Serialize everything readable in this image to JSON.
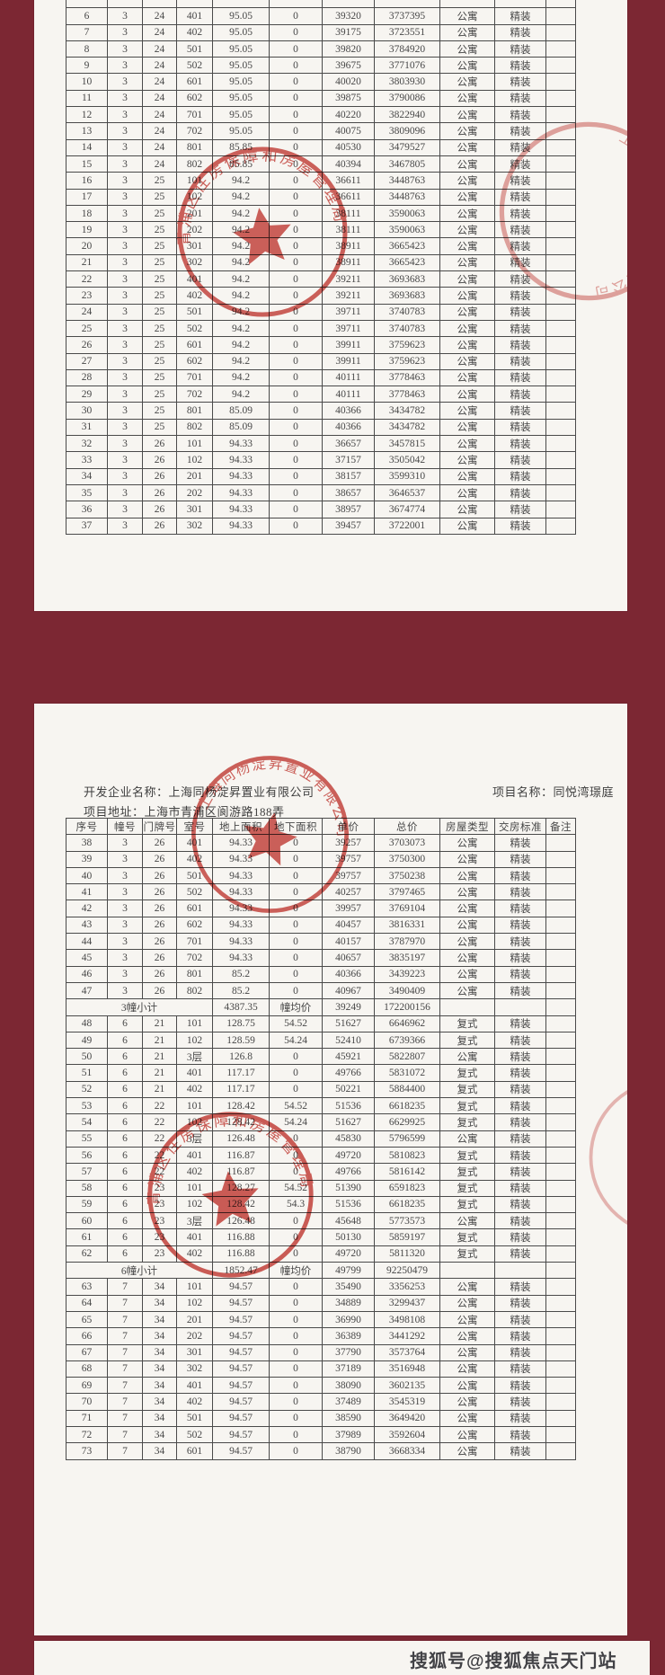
{
  "watermark": "搜狐号@搜狐焦点天门站",
  "colors": {
    "background_maroon": "#7c2733",
    "page_white": "#f7f5f1",
    "stamp_red": "#c63c35",
    "table_ink": "#474747"
  },
  "stamps": {
    "bureau_seal_text": "青浦区住房保障和房屋管理局",
    "company_seal_text": "上海同杨淀昇置业有限公司",
    "star_icon": "five-point-star"
  },
  "page2_header": {
    "developer": "开发企业名称：上海同杨淀昇置业有限公司",
    "project_name": "项目名称：同悦湾璟庭",
    "address": "项目地址：上海市青浦区阆游路188弄"
  },
  "columns": [
    "序号",
    "幢号",
    "门牌号",
    "室号",
    "地上面积",
    "地下面积",
    "单价",
    "总价",
    "房屋类型",
    "交房标准",
    "备注"
  ],
  "page1_rows": [
    {
      "cells": [
        "",
        "",
        "",
        "",
        "",
        "",
        "",
        "",
        "",
        "",
        ""
      ]
    },
    {
      "cells": [
        "6",
        "3",
        "24",
        "401",
        "95.05",
        "0",
        "39320",
        "3737395",
        "公寓",
        "精装",
        ""
      ]
    },
    {
      "cells": [
        "7",
        "3",
        "24",
        "402",
        "95.05",
        "0",
        "39175",
        "3723551",
        "公寓",
        "精装",
        ""
      ]
    },
    {
      "cells": [
        "8",
        "3",
        "24",
        "501",
        "95.05",
        "0",
        "39820",
        "3784920",
        "公寓",
        "精装",
        ""
      ]
    },
    {
      "cells": [
        "9",
        "3",
        "24",
        "502",
        "95.05",
        "0",
        "39675",
        "3771076",
        "公寓",
        "精装",
        ""
      ]
    },
    {
      "cells": [
        "10",
        "3",
        "24",
        "601",
        "95.05",
        "0",
        "40020",
        "3803930",
        "公寓",
        "精装",
        ""
      ]
    },
    {
      "cells": [
        "11",
        "3",
        "24",
        "602",
        "95.05",
        "0",
        "39875",
        "3790086",
        "公寓",
        "精装",
        ""
      ]
    },
    {
      "cells": [
        "12",
        "3",
        "24",
        "701",
        "95.05",
        "0",
        "40220",
        "3822940",
        "公寓",
        "精装",
        ""
      ]
    },
    {
      "cells": [
        "13",
        "3",
        "24",
        "702",
        "95.05",
        "0",
        "40075",
        "3809096",
        "公寓",
        "精装",
        ""
      ]
    },
    {
      "cells": [
        "14",
        "3",
        "24",
        "801",
        "85.85",
        "0",
        "40530",
        "3479527",
        "公寓",
        "精装",
        ""
      ]
    },
    {
      "cells": [
        "15",
        "3",
        "24",
        "802",
        "85.85",
        "0",
        "40394",
        "3467805",
        "公寓",
        "精装",
        ""
      ]
    },
    {
      "cells": [
        "16",
        "3",
        "25",
        "101",
        "94.2",
        "0",
        "36611",
        "3448763",
        "公寓",
        "精装",
        ""
      ]
    },
    {
      "cells": [
        "17",
        "3",
        "25",
        "102",
        "94.2",
        "0",
        "36611",
        "3448763",
        "公寓",
        "精装",
        ""
      ]
    },
    {
      "cells": [
        "18",
        "3",
        "25",
        "201",
        "94.2",
        "0",
        "38111",
        "3590063",
        "公寓",
        "精装",
        ""
      ]
    },
    {
      "cells": [
        "19",
        "3",
        "25",
        "202",
        "94.2",
        "0",
        "38111",
        "3590063",
        "公寓",
        "精装",
        ""
      ]
    },
    {
      "cells": [
        "20",
        "3",
        "25",
        "301",
        "94.2",
        "0",
        "38911",
        "3665423",
        "公寓",
        "精装",
        ""
      ]
    },
    {
      "cells": [
        "21",
        "3",
        "25",
        "302",
        "94.2",
        "0",
        "38911",
        "3665423",
        "公寓",
        "精装",
        ""
      ]
    },
    {
      "cells": [
        "22",
        "3",
        "25",
        "401",
        "94.2",
        "0",
        "39211",
        "3693683",
        "公寓",
        "精装",
        ""
      ]
    },
    {
      "cells": [
        "23",
        "3",
        "25",
        "402",
        "94.2",
        "0",
        "39211",
        "3693683",
        "公寓",
        "精装",
        ""
      ]
    },
    {
      "cells": [
        "24",
        "3",
        "25",
        "501",
        "94.2",
        "0",
        "39711",
        "3740783",
        "公寓",
        "精装",
        ""
      ]
    },
    {
      "cells": [
        "25",
        "3",
        "25",
        "502",
        "94.2",
        "0",
        "39711",
        "3740783",
        "公寓",
        "精装",
        ""
      ]
    },
    {
      "cells": [
        "26",
        "3",
        "25",
        "601",
        "94.2",
        "0",
        "39911",
        "3759623",
        "公寓",
        "精装",
        ""
      ]
    },
    {
      "cells": [
        "27",
        "3",
        "25",
        "602",
        "94.2",
        "0",
        "39911",
        "3759623",
        "公寓",
        "精装",
        ""
      ]
    },
    {
      "cells": [
        "28",
        "3",
        "25",
        "701",
        "94.2",
        "0",
        "40111",
        "3778463",
        "公寓",
        "精装",
        ""
      ]
    },
    {
      "cells": [
        "29",
        "3",
        "25",
        "702",
        "94.2",
        "0",
        "40111",
        "3778463",
        "公寓",
        "精装",
        ""
      ]
    },
    {
      "cells": [
        "30",
        "3",
        "25",
        "801",
        "85.09",
        "0",
        "40366",
        "3434782",
        "公寓",
        "精装",
        ""
      ]
    },
    {
      "cells": [
        "31",
        "3",
        "25",
        "802",
        "85.09",
        "0",
        "40366",
        "3434782",
        "公寓",
        "精装",
        ""
      ]
    },
    {
      "cells": [
        "32",
        "3",
        "26",
        "101",
        "94.33",
        "0",
        "36657",
        "3457815",
        "公寓",
        "精装",
        ""
      ]
    },
    {
      "cells": [
        "33",
        "3",
        "26",
        "102",
        "94.33",
        "0",
        "37157",
        "3505042",
        "公寓",
        "精装",
        ""
      ]
    },
    {
      "cells": [
        "34",
        "3",
        "26",
        "201",
        "94.33",
        "0",
        "38157",
        "3599310",
        "公寓",
        "精装",
        ""
      ]
    },
    {
      "cells": [
        "35",
        "3",
        "26",
        "202",
        "94.33",
        "0",
        "38657",
        "3646537",
        "公寓",
        "精装",
        ""
      ]
    },
    {
      "cells": [
        "36",
        "3",
        "26",
        "301",
        "94.33",
        "0",
        "38957",
        "3674774",
        "公寓",
        "精装",
        ""
      ]
    },
    {
      "cells": [
        "37",
        "3",
        "26",
        "302",
        "94.33",
        "0",
        "39457",
        "3722001",
        "公寓",
        "精装",
        ""
      ]
    }
  ],
  "page2_rows": [
    {
      "cells": [
        "38",
        "3",
        "26",
        "401",
        "94.33",
        "0",
        "39257",
        "3703073",
        "公寓",
        "精装",
        ""
      ]
    },
    {
      "cells": [
        "39",
        "3",
        "26",
        "402",
        "94.33",
        "0",
        "39757",
        "3750300",
        "公寓",
        "精装",
        ""
      ]
    },
    {
      "cells": [
        "40",
        "3",
        "26",
        "501",
        "94.33",
        "0",
        "39757",
        "3750238",
        "公寓",
        "精装",
        ""
      ]
    },
    {
      "cells": [
        "41",
        "3",
        "26",
        "502",
        "94.33",
        "0",
        "40257",
        "3797465",
        "公寓",
        "精装",
        ""
      ]
    },
    {
      "cells": [
        "42",
        "3",
        "26",
        "601",
        "94.33",
        "0",
        "39957",
        "3769104",
        "公寓",
        "精装",
        ""
      ]
    },
    {
      "cells": [
        "43",
        "3",
        "26",
        "602",
        "94.33",
        "0",
        "40457",
        "3816331",
        "公寓",
        "精装",
        ""
      ]
    },
    {
      "cells": [
        "44",
        "3",
        "26",
        "701",
        "94.33",
        "0",
        "40157",
        "3787970",
        "公寓",
        "精装",
        ""
      ]
    },
    {
      "cells": [
        "45",
        "3",
        "26",
        "702",
        "94.33",
        "0",
        "40657",
        "3835197",
        "公寓",
        "精装",
        ""
      ]
    },
    {
      "cells": [
        "46",
        "3",
        "26",
        "801",
        "85.2",
        "0",
        "40366",
        "3439223",
        "公寓",
        "精装",
        ""
      ]
    },
    {
      "cells": [
        "47",
        "3",
        "26",
        "802",
        "85.2",
        "0",
        "40967",
        "3490409",
        "公寓",
        "精装",
        ""
      ]
    },
    {
      "subtotal": true,
      "label": "3幢小计",
      "area": "4387.35",
      "avg_label": "幢均价",
      "avg": "39249",
      "total": "172200156"
    },
    {
      "cells": [
        "48",
        "6",
        "21",
        "101",
        "128.75",
        "54.52",
        "51627",
        "6646962",
        "复式",
        "精装",
        ""
      ]
    },
    {
      "cells": [
        "49",
        "6",
        "21",
        "102",
        "128.59",
        "54.24",
        "52410",
        "6739366",
        "复式",
        "精装",
        ""
      ]
    },
    {
      "cells": [
        "50",
        "6",
        "21",
        "3层",
        "126.8",
        "0",
        "45921",
        "5822807",
        "公寓",
        "精装",
        ""
      ]
    },
    {
      "cells": [
        "51",
        "6",
        "21",
        "401",
        "117.17",
        "0",
        "49766",
        "5831072",
        "复式",
        "精装",
        ""
      ]
    },
    {
      "cells": [
        "52",
        "6",
        "21",
        "402",
        "117.17",
        "0",
        "50221",
        "5884400",
        "复式",
        "精装",
        ""
      ]
    },
    {
      "cells": [
        "53",
        "6",
        "22",
        "101",
        "128.42",
        "54.52",
        "51536",
        "6618235",
        "复式",
        "精装",
        ""
      ]
    },
    {
      "cells": [
        "54",
        "6",
        "22",
        "102",
        "128.42",
        "54.24",
        "51627",
        "6629925",
        "复式",
        "精装",
        ""
      ]
    },
    {
      "cells": [
        "55",
        "6",
        "22",
        "3层",
        "126.48",
        "0",
        "45830",
        "5796599",
        "公寓",
        "精装",
        ""
      ]
    },
    {
      "cells": [
        "56",
        "6",
        "22",
        "401",
        "116.87",
        "0",
        "49720",
        "5810823",
        "复式",
        "精装",
        ""
      ]
    },
    {
      "cells": [
        "57",
        "6",
        "22",
        "402",
        "116.87",
        "0",
        "49766",
        "5816142",
        "复式",
        "精装",
        ""
      ]
    },
    {
      "cells": [
        "58",
        "6",
        "23",
        "101",
        "128.27",
        "54.52",
        "51390",
        "6591823",
        "复式",
        "精装",
        ""
      ]
    },
    {
      "cells": [
        "59",
        "6",
        "23",
        "102",
        "128.42",
        "54.3",
        "51536",
        "6618235",
        "复式",
        "精装",
        ""
      ]
    },
    {
      "cells": [
        "60",
        "6",
        "23",
        "3层",
        "126.48",
        "0",
        "45648",
        "5773573",
        "公寓",
        "精装",
        ""
      ]
    },
    {
      "cells": [
        "61",
        "6",
        "23",
        "401",
        "116.88",
        "0",
        "50130",
        "5859197",
        "复式",
        "精装",
        ""
      ]
    },
    {
      "cells": [
        "62",
        "6",
        "23",
        "402",
        "116.88",
        "0",
        "49720",
        "5811320",
        "复式",
        "精装",
        ""
      ]
    },
    {
      "subtotal": true,
      "label": "6幢小计",
      "area": "1852.47",
      "avg_label": "幢均价",
      "avg": "49799",
      "total": "92250479"
    },
    {
      "cells": [
        "63",
        "7",
        "34",
        "101",
        "94.57",
        "0",
        "35490",
        "3356253",
        "公寓",
        "精装",
        ""
      ]
    },
    {
      "cells": [
        "64",
        "7",
        "34",
        "102",
        "94.57",
        "0",
        "34889",
        "3299437",
        "公寓",
        "精装",
        ""
      ]
    },
    {
      "cells": [
        "65",
        "7",
        "34",
        "201",
        "94.57",
        "0",
        "36990",
        "3498108",
        "公寓",
        "精装",
        ""
      ]
    },
    {
      "cells": [
        "66",
        "7",
        "34",
        "202",
        "94.57",
        "0",
        "36389",
        "3441292",
        "公寓",
        "精装",
        ""
      ]
    },
    {
      "cells": [
        "67",
        "7",
        "34",
        "301",
        "94.57",
        "0",
        "37790",
        "3573764",
        "公寓",
        "精装",
        ""
      ]
    },
    {
      "cells": [
        "68",
        "7",
        "34",
        "302",
        "94.57",
        "0",
        "37189",
        "3516948",
        "公寓",
        "精装",
        ""
      ]
    },
    {
      "cells": [
        "69",
        "7",
        "34",
        "401",
        "94.57",
        "0",
        "38090",
        "3602135",
        "公寓",
        "精装",
        ""
      ]
    },
    {
      "cells": [
        "70",
        "7",
        "34",
        "402",
        "94.57",
        "0",
        "37489",
        "3545319",
        "公寓",
        "精装",
        ""
      ]
    },
    {
      "cells": [
        "71",
        "7",
        "34",
        "501",
        "94.57",
        "0",
        "38590",
        "3649420",
        "公寓",
        "精装",
        ""
      ]
    },
    {
      "cells": [
        "72",
        "7",
        "34",
        "502",
        "94.57",
        "0",
        "37989",
        "3592604",
        "公寓",
        "精装",
        ""
      ]
    },
    {
      "cells": [
        "73",
        "7",
        "34",
        "601",
        "94.57",
        "0",
        "38790",
        "3668334",
        "公寓",
        "精装",
        ""
      ]
    }
  ]
}
